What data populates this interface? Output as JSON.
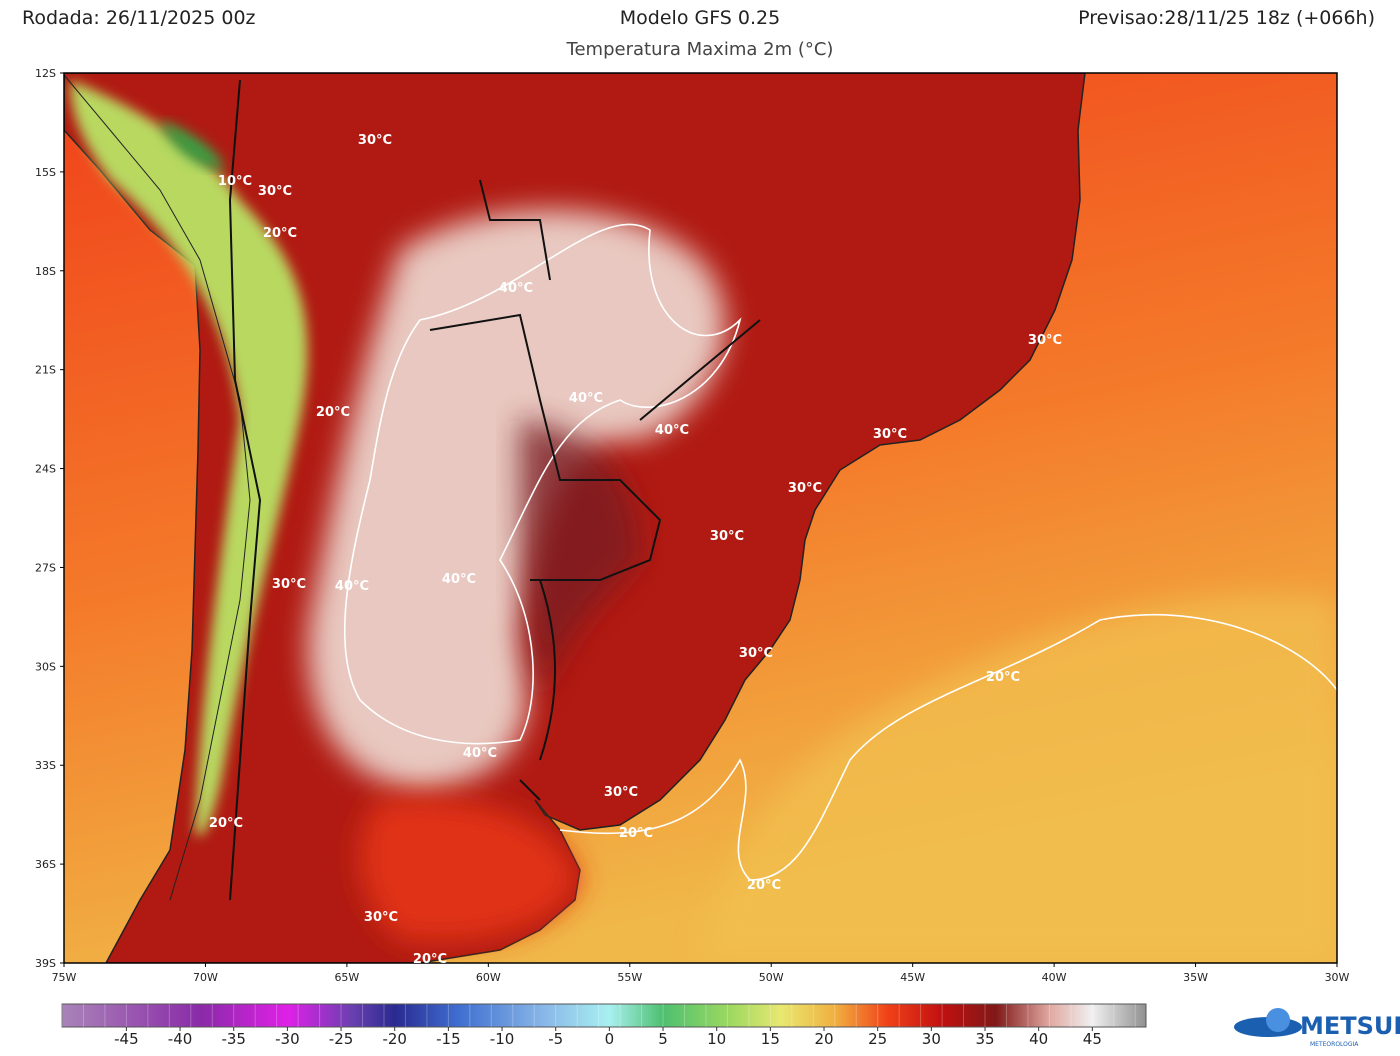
{
  "header": {
    "run": "Rodada: 26/11/2025 00z",
    "model": "Modelo GFS 0.25",
    "forecast": "Previsao:28/11/25 18z (+066h)",
    "subtitle": "Temperatura Maxima 2m (°C)"
  },
  "map": {
    "lat_labels": [
      "12S",
      "15S",
      "18S",
      "21S",
      "24S",
      "27S",
      "30S",
      "33S",
      "36S",
      "39S"
    ],
    "lon_labels": [
      "75W",
      "70W",
      "65W",
      "60W",
      "55W",
      "50W",
      "45W",
      "40W",
      "35W",
      "30W"
    ],
    "contour_labels": [
      "30°C",
      "30°C",
      "10°C",
      "20°C",
      "40°C",
      "30°C",
      "20°C",
      "40°C",
      "40°C",
      "30°C",
      "30°C",
      "30°C",
      "40°C",
      "40°C",
      "30°C",
      "30°C",
      "20°C",
      "40°C",
      "30°C",
      "20°C",
      "20°C",
      "20°C",
      "30°C",
      "20°C"
    ]
  },
  "colorbar": {
    "lim": [
      -51,
      50
    ],
    "ticks": [
      -45,
      -40,
      -35,
      -30,
      -25,
      -20,
      -15,
      -10,
      -5,
      0,
      5,
      10,
      15,
      20,
      25,
      30,
      35,
      40,
      45
    ],
    "stops": [
      {
        "value": -51,
        "color": "#a984b8"
      },
      {
        "value": -38,
        "color": "#8a2aa8"
      },
      {
        "value": -30,
        "color": "#e020e8"
      },
      {
        "value": -24,
        "color": "#6a40b0"
      },
      {
        "value": -20,
        "color": "#2a2a90"
      },
      {
        "value": -14,
        "color": "#3f6fd0"
      },
      {
        "value": -6,
        "color": "#8ab8e8"
      },
      {
        "value": 0,
        "color": "#a8f0f0"
      },
      {
        "value": 5,
        "color": "#4ec070"
      },
      {
        "value": 11,
        "color": "#9ad860"
      },
      {
        "value": 16,
        "color": "#e8e870"
      },
      {
        "value": 21,
        "color": "#f0b040"
      },
      {
        "value": 26,
        "color": "#f04018"
      },
      {
        "value": 31,
        "color": "#c01010"
      },
      {
        "value": 36,
        "color": "#801818"
      },
      {
        "value": 41,
        "color": "#e0a8a0"
      },
      {
        "value": 45,
        "color": "#f0f0f0"
      },
      {
        "value": 50,
        "color": "#909090"
      }
    ]
  },
  "logo": {
    "name": "METSUL",
    "tagline": "METEOROLOGIA"
  }
}
